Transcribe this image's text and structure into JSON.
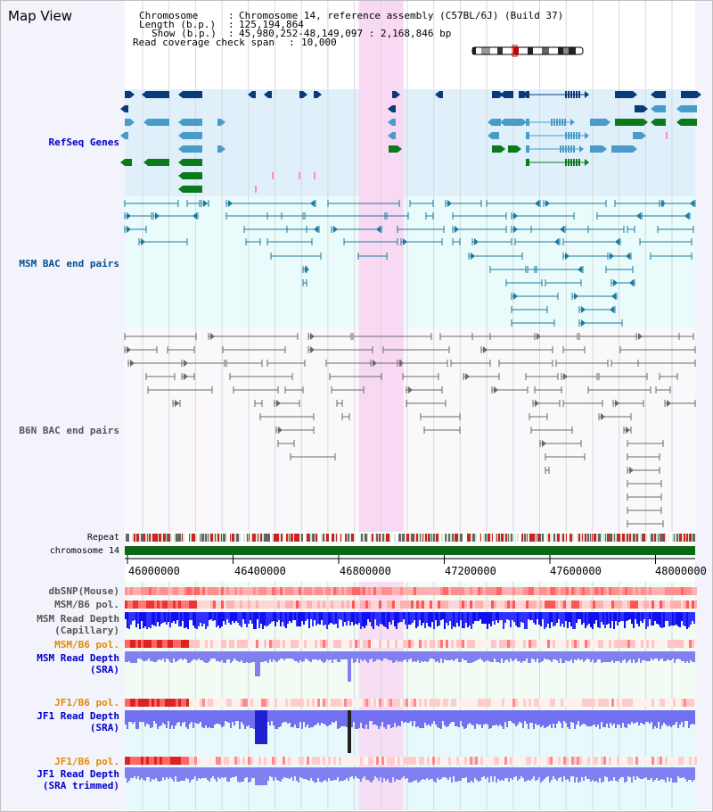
{
  "header": {
    "title": "Map View",
    "chromosome_key": "Chromosome",
    "chromosome_val": "Chromosome 14, reference assembly (C57BL/6J) (Build 37)",
    "length_key": "Length (b.p.)",
    "length_val": "125,194,864",
    "show_key": "Show (b.p.)",
    "show_val": "45,980,252-48,149,097 : 2,168,846 bp",
    "span_key": "Read coverage check span",
    "span_val": "10,000"
  },
  "tracks": {
    "refseq": "RefSeq Genes",
    "msm_bac": "MSM BAC end pairs",
    "b6n_bac": "B6N BAC end pairs",
    "repeat": "Repeat",
    "chrom": "chromosome 14",
    "dbsnp": "dbSNP(Mouse)",
    "msm_b6_pol": "MSM/B6 pol.",
    "msm_read_cap_1": "MSM Read Depth",
    "msm_read_cap_2": "(Capillary)",
    "msm_b6_pol2": "MSM/B6 pol.",
    "msm_read_sra_1": "MSM Read Depth",
    "msm_read_sra_2": "(SRA)",
    "jf1_b6_pol": "JF1/B6 pol.",
    "jf1_read_1": "JF1 Read Depth",
    "jf1_read_2": "(SRA)",
    "jf1_b6_pol2": "JF1/B6 pol.",
    "jf1_trim_1": "JF1 Read Depth",
    "jf1_trim_2": "(SRA trimmed)"
  },
  "axis": {
    "ticks": [
      "46000000",
      "46400000",
      "46800000",
      "47200000",
      "47600000",
      "48000000"
    ],
    "range_bp": [
      45980252,
      48149097
    ]
  },
  "highlight": {
    "start_bp": 46870000,
    "end_bp": 47040000
  },
  "colors": {
    "refseq_bg": "#dff0fb",
    "msm_bg": "#e9fbfb",
    "b6n_bg": "#fbf8fb",
    "highlight": "#f8d8f2",
    "gene_dark": "#0b3a78",
    "gene_mid": "#4a9cc8",
    "gene_green": "#0b7a1b",
    "msm_line": "#1a7aa0",
    "b6n_line": "#6a6a6a",
    "track_label_blue": "#0000cc",
    "track_label_msm": "#004f8f",
    "track_label_orange": "#e08a00",
    "track_label_gray": "#555555"
  }
}
